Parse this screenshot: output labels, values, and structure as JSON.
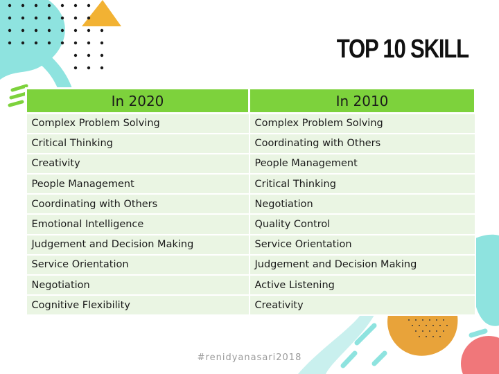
{
  "title": "TOP 10 SKILL",
  "table": {
    "headers": [
      "In 2020",
      "In 2010"
    ],
    "rows": [
      [
        "Complex Problem Solving",
        "Complex Problem Solving"
      ],
      [
        "Critical Thinking",
        "Coordinating with Others"
      ],
      [
        "Creativity",
        "People Management"
      ],
      [
        "People Management",
        "Critical Thinking"
      ],
      [
        "Coordinating with Others",
        "Negotiation"
      ],
      [
        "Emotional Intelligence",
        "Quality Control"
      ],
      [
        "Judgement and Decision Making",
        "Service Orientation"
      ],
      [
        "Service Orientation",
        "Judgement and Decision Making"
      ],
      [
        "Negotiation",
        "Active Listening"
      ],
      [
        "Cognitive Flexibility",
        "Creativity"
      ]
    ]
  },
  "footer": "#renidyanasari2018",
  "colors": {
    "header_green": "#7dd23c",
    "row_tint": "#eaf5e3",
    "accent_yellow": "#f2b233",
    "accent_teal": "#8ee3df",
    "accent_coral": "#f0777a",
    "accent_orange": "#e8a33a"
  }
}
